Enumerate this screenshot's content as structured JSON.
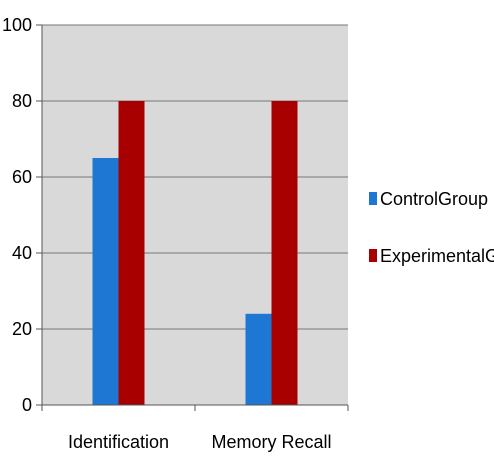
{
  "chart_data": {
    "type": "bar",
    "categories": [
      "Identification",
      "Memory Recall"
    ],
    "series": [
      {
        "name": "ControlGroup",
        "values": [
          65,
          24
        ],
        "color": "#1f77d4"
      },
      {
        "name": "ExperimentalGroup",
        "values": [
          80,
          80
        ],
        "color": "#a80000"
      }
    ],
    "ylim": [
      0,
      100
    ],
    "yticks": [
      0,
      20,
      40,
      60,
      80,
      100
    ],
    "grid": true,
    "legend_position": "right",
    "plot_background": "#d9d9d9"
  }
}
